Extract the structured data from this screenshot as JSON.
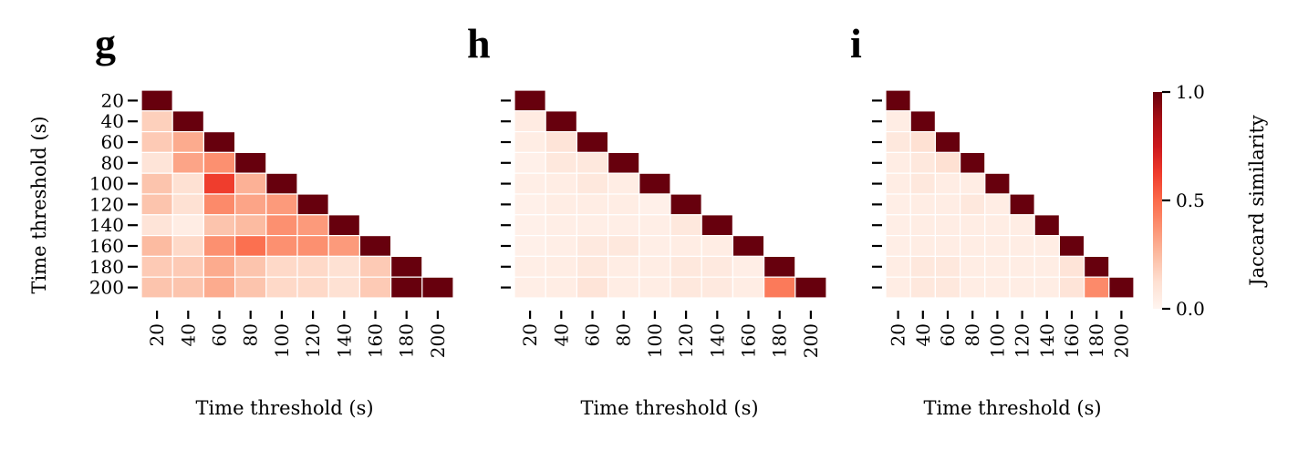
{
  "colors": {
    "cmap": [
      "#fff5f0",
      "#fee0d2",
      "#fcbba1",
      "#fc9272",
      "#fb6a4a",
      "#ef3b2c",
      "#cb181d",
      "#a50f15",
      "#67000d"
    ],
    "cell_border": "#ffffff"
  },
  "chart_data": [
    {
      "type": "heatmap",
      "panel_label": "g",
      "xlabel": "Time threshold (s)",
      "ylabel": "Time threshold (s)",
      "x_ticks": [
        "20",
        "40",
        "60",
        "80",
        "100",
        "120",
        "140",
        "160",
        "180",
        "200"
      ],
      "y_ticks": [
        "20",
        "40",
        "60",
        "80",
        "100",
        "120",
        "140",
        "160",
        "180",
        "200"
      ],
      "show_y_tick_labels": true,
      "lower_triangle": true,
      "values": [
        [
          1.0
        ],
        [
          0.18,
          1.0
        ],
        [
          0.2,
          0.3,
          1.0
        ],
        [
          0.1,
          0.32,
          0.38,
          1.0
        ],
        [
          0.22,
          0.12,
          0.62,
          0.28,
          1.0
        ],
        [
          0.22,
          0.12,
          0.4,
          0.32,
          0.35,
          1.0
        ],
        [
          0.1,
          0.05,
          0.22,
          0.25,
          0.38,
          0.35,
          1.0
        ],
        [
          0.25,
          0.15,
          0.38,
          0.48,
          0.38,
          0.38,
          0.35,
          1.0
        ],
        [
          0.2,
          0.2,
          0.3,
          0.22,
          0.15,
          0.15,
          0.12,
          0.2,
          1.0
        ],
        [
          0.22,
          0.22,
          0.3,
          0.22,
          0.15,
          0.15,
          0.12,
          0.2,
          1.0,
          1.0
        ]
      ]
    },
    {
      "type": "heatmap",
      "panel_label": "h",
      "xlabel": "Time threshold (s)",
      "ylabel": "",
      "x_ticks": [
        "20",
        "40",
        "60",
        "80",
        "100",
        "120",
        "140",
        "160",
        "180",
        "200"
      ],
      "y_ticks": [
        "20",
        "40",
        "60",
        "80",
        "100",
        "120",
        "140",
        "160",
        "180",
        "200"
      ],
      "show_y_tick_labels": false,
      "lower_triangle": true,
      "values": [
        [
          1.0
        ],
        [
          0.06,
          1.0
        ],
        [
          0.05,
          0.1,
          1.0
        ],
        [
          0.03,
          0.08,
          0.08,
          1.0
        ],
        [
          0.04,
          0.05,
          0.08,
          0.05,
          1.0
        ],
        [
          0.03,
          0.05,
          0.05,
          0.05,
          0.03,
          1.0
        ],
        [
          0.03,
          0.04,
          0.04,
          0.04,
          0.04,
          0.08,
          1.0
        ],
        [
          0.03,
          0.04,
          0.07,
          0.08,
          0.04,
          0.05,
          0.05,
          1.0
        ],
        [
          0.04,
          0.05,
          0.08,
          0.05,
          0.05,
          0.08,
          0.07,
          0.04,
          1.0
        ],
        [
          0.04,
          0.05,
          0.1,
          0.05,
          0.05,
          0.08,
          0.07,
          0.05,
          0.45,
          1.0
        ]
      ]
    },
    {
      "type": "heatmap",
      "panel_label": "i",
      "xlabel": "Time threshold (s)",
      "ylabel": "",
      "x_ticks": [
        "20",
        "40",
        "60",
        "80",
        "100",
        "120",
        "140",
        "160",
        "180",
        "200"
      ],
      "y_ticks": [
        "20",
        "40",
        "60",
        "80",
        "100",
        "120",
        "140",
        "160",
        "180",
        "200"
      ],
      "show_y_tick_labels": false,
      "lower_triangle": true,
      "values": [
        [
          1.0
        ],
        [
          0.05,
          1.0
        ],
        [
          0.08,
          0.12,
          1.0
        ],
        [
          0.05,
          0.08,
          0.12,
          1.0
        ],
        [
          0.05,
          0.08,
          0.05,
          0.05,
          1.0
        ],
        [
          0.04,
          0.05,
          0.05,
          0.08,
          0.05,
          1.0
        ],
        [
          0.04,
          0.05,
          0.05,
          0.05,
          0.05,
          0.05,
          1.0
        ],
        [
          0.04,
          0.05,
          0.05,
          0.05,
          0.05,
          0.05,
          0.05,
          1.0
        ],
        [
          0.05,
          0.08,
          0.08,
          0.05,
          0.05,
          0.05,
          0.05,
          0.1,
          1.0
        ],
        [
          0.05,
          0.08,
          0.08,
          0.05,
          0.05,
          0.05,
          0.05,
          0.1,
          0.4,
          1.0
        ]
      ]
    }
  ],
  "colorbar": {
    "label": "Jaccard similarity",
    "range": [
      0,
      1
    ],
    "ticks": [
      "0.0",
      "0.5",
      "1.0"
    ]
  }
}
